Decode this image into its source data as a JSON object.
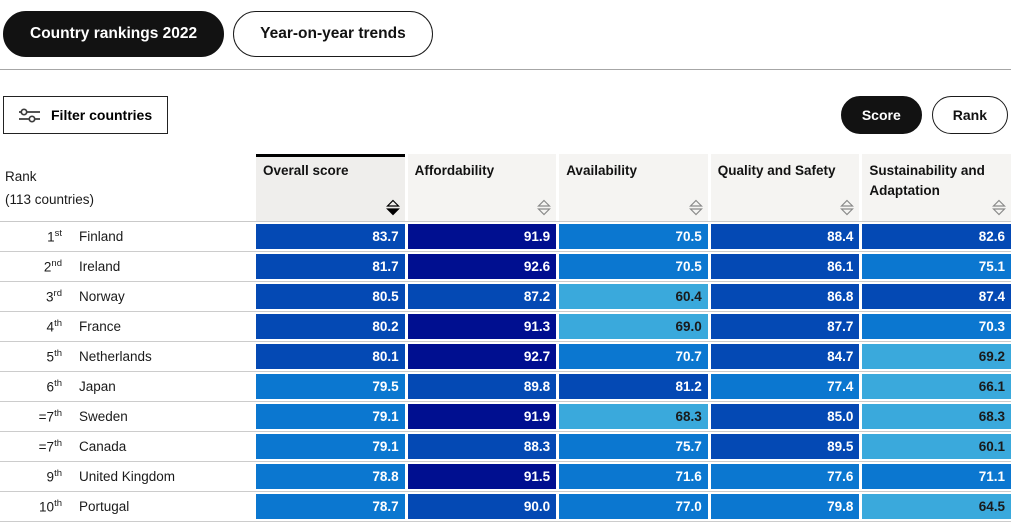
{
  "tabs": [
    {
      "label": "Country rankings 2022",
      "active": true
    },
    {
      "label": "Year-on-year trends",
      "active": false
    }
  ],
  "toolbar": {
    "filter_label": "Filter countries",
    "filter_icon": "sliders-icon",
    "toggle": [
      {
        "label": "Score",
        "active": true
      },
      {
        "label": "Rank",
        "active": false
      }
    ]
  },
  "table": {
    "rank_header_line1": "Rank",
    "rank_header_line2": "(113 countries)",
    "columns": [
      {
        "label": "Overall score",
        "sorted": true,
        "sort_direction": "desc"
      },
      {
        "label": "Affordability",
        "sorted": false
      },
      {
        "label": "Availability",
        "sorted": false
      },
      {
        "label": "Quality and Safety",
        "sorted": false
      },
      {
        "label": "Sustainability and Adaptation",
        "sorted": false
      }
    ],
    "rows": [
      {
        "rank": "1",
        "ordinal": "st",
        "country": "Finland",
        "values": [
          83.7,
          91.9,
          70.5,
          88.4,
          82.6
        ]
      },
      {
        "rank": "2",
        "ordinal": "nd",
        "country": "Ireland",
        "values": [
          81.7,
          92.6,
          70.5,
          86.1,
          75.1
        ]
      },
      {
        "rank": "3",
        "ordinal": "rd",
        "country": "Norway",
        "values": [
          80.5,
          87.2,
          60.4,
          86.8,
          87.4
        ]
      },
      {
        "rank": "4",
        "ordinal": "th",
        "country": "France",
        "values": [
          80.2,
          91.3,
          69.0,
          87.7,
          70.3
        ]
      },
      {
        "rank": "5",
        "ordinal": "th",
        "country": "Netherlands",
        "values": [
          80.1,
          92.7,
          70.7,
          84.7,
          69.2
        ]
      },
      {
        "rank": "6",
        "ordinal": "th",
        "country": "Japan",
        "values": [
          79.5,
          89.8,
          81.2,
          77.4,
          66.1
        ]
      },
      {
        "rank": "=7",
        "ordinal": "th",
        "country": "Sweden",
        "values": [
          79.1,
          91.9,
          68.3,
          85.0,
          68.3
        ]
      },
      {
        "rank": "=7",
        "ordinal": "th",
        "country": "Canada",
        "values": [
          79.1,
          88.3,
          75.7,
          89.5,
          60.1
        ]
      },
      {
        "rank": "9",
        "ordinal": "th",
        "country": "United Kingdom",
        "values": [
          78.8,
          91.5,
          71.6,
          77.6,
          71.1
        ]
      },
      {
        "rank": "10",
        "ordinal": "th",
        "country": "Portugal",
        "values": [
          78.7,
          90.0,
          77.0,
          79.8,
          64.5
        ]
      }
    ]
  },
  "heatmap_bins": [
    {
      "min": 90.5,
      "bg": "#000f90",
      "text": "#ffffff"
    },
    {
      "min": 80.05,
      "bg": "#0449b4",
      "text": "#ffffff"
    },
    {
      "min": 70.0,
      "bg": "#0b77d0",
      "text": "#ffffff"
    },
    {
      "min": 0,
      "bg": "#3aa9dc",
      "text": "#1a1a1a"
    }
  ],
  "colors": {
    "active_pill": "#121212",
    "header_bg": "#f5f4f2",
    "sorted_header_bg": "#efeeec",
    "row_divider": "#cccccc",
    "sort_arrow_inactive": "#8a8a8a",
    "sort_arrow_active": "#000000"
  }
}
